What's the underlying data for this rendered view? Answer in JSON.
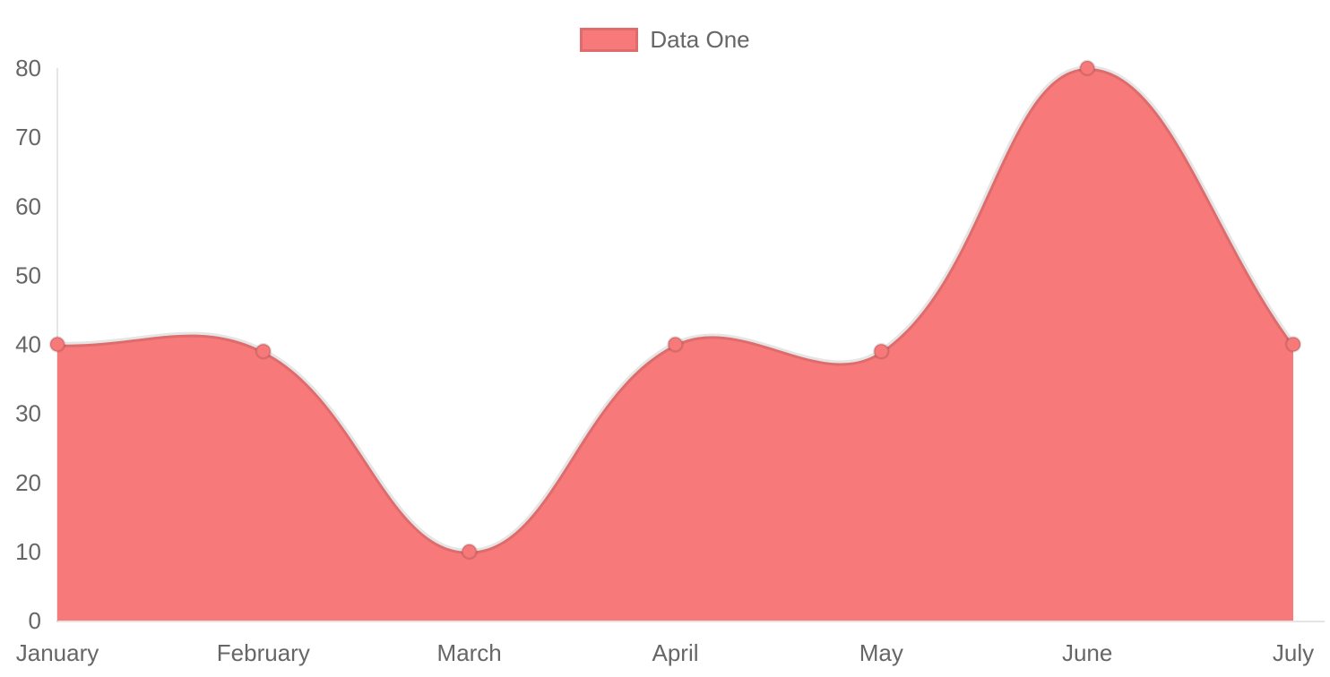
{
  "chart_data": {
    "type": "area",
    "title": "",
    "xlabel": "",
    "ylabel": "",
    "categories": [
      "January",
      "February",
      "March",
      "April",
      "May",
      "June",
      "July"
    ],
    "series": [
      {
        "name": "Data One",
        "values": [
          40,
          39,
          10,
          40,
          39,
          80,
          40
        ]
      }
    ],
    "ylim": [
      0,
      80
    ],
    "yticks": [
      0,
      10,
      20,
      30,
      40,
      50,
      60,
      70,
      80
    ],
    "grid": false,
    "legend_position": "top",
    "line_tension": 0.4,
    "colors": {
      "area_fill": "#f87979",
      "line": "rgba(0,0,0,0.10)",
      "point_fill": "#f87979",
      "point_border": "rgba(0,0,0,0.12)",
      "axis_line": "rgba(0,0,0,0.10)",
      "tick_label": "#666666",
      "legend_label": "#666666",
      "background": "#ffffff"
    }
  }
}
